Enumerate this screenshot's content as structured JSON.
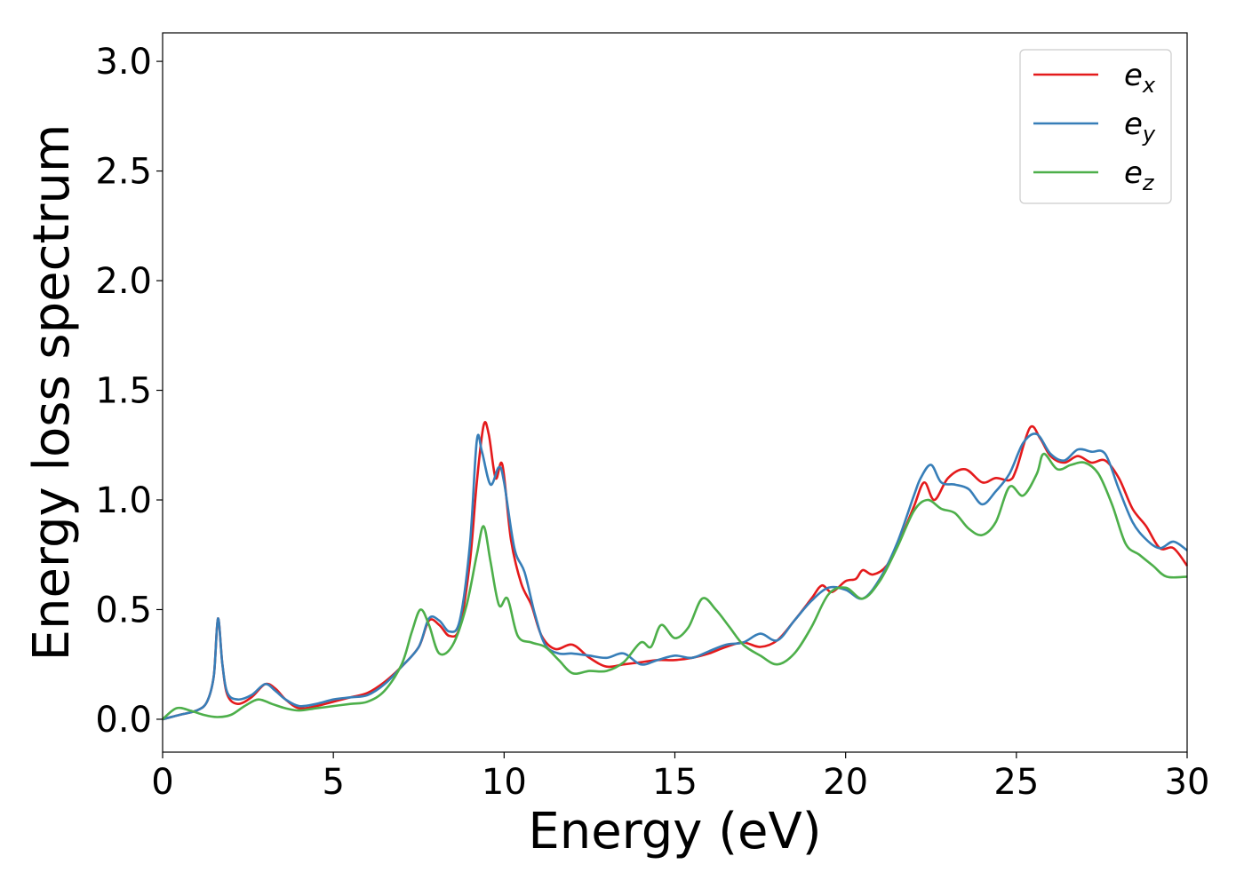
{
  "chart_data": {
    "type": "line",
    "title": "",
    "xlabel": "Energy (eV)",
    "ylabel": "Energy loss spectrum",
    "xlim": [
      0,
      30
    ],
    "ylim": [
      -0.15,
      3.13
    ],
    "xticks": [
      "0",
      "5",
      "10",
      "15",
      "20",
      "25",
      "30"
    ],
    "yticks": [
      "0.0",
      "0.5",
      "1.0",
      "1.5",
      "2.0",
      "2.5",
      "3.0"
    ],
    "grid": false,
    "legend_position": "top-right",
    "series": [
      {
        "name": "e_x",
        "color": "#e41a1c",
        "points": [
          [
            0,
            0.0
          ],
          [
            0.5,
            0.02
          ],
          [
            1.0,
            0.04
          ],
          [
            1.3,
            0.08
          ],
          [
            1.5,
            0.2
          ],
          [
            1.62,
            0.46
          ],
          [
            1.75,
            0.25
          ],
          [
            1.9,
            0.11
          ],
          [
            2.2,
            0.07
          ],
          [
            2.6,
            0.1
          ],
          [
            3.0,
            0.16
          ],
          [
            3.3,
            0.14
          ],
          [
            3.6,
            0.09
          ],
          [
            4.0,
            0.05
          ],
          [
            4.5,
            0.06
          ],
          [
            5.0,
            0.08
          ],
          [
            5.5,
            0.1
          ],
          [
            6.0,
            0.12
          ],
          [
            6.5,
            0.17
          ],
          [
            7.0,
            0.24
          ],
          [
            7.5,
            0.33
          ],
          [
            7.8,
            0.45
          ],
          [
            8.1,
            0.43
          ],
          [
            8.4,
            0.38
          ],
          [
            8.7,
            0.42
          ],
          [
            9.0,
            0.72
          ],
          [
            9.2,
            1.08
          ],
          [
            9.4,
            1.34
          ],
          [
            9.55,
            1.3
          ],
          [
            9.75,
            1.1
          ],
          [
            9.95,
            1.16
          ],
          [
            10.2,
            0.82
          ],
          [
            10.5,
            0.62
          ],
          [
            10.8,
            0.52
          ],
          [
            11.1,
            0.38
          ],
          [
            11.5,
            0.32
          ],
          [
            12.0,
            0.34
          ],
          [
            12.5,
            0.28
          ],
          [
            13.0,
            0.24
          ],
          [
            13.5,
            0.25
          ],
          [
            14.0,
            0.26
          ],
          [
            14.5,
            0.27
          ],
          [
            15.0,
            0.27
          ],
          [
            15.5,
            0.28
          ],
          [
            16.0,
            0.3
          ],
          [
            16.5,
            0.33
          ],
          [
            17.0,
            0.35
          ],
          [
            17.5,
            0.33
          ],
          [
            18.0,
            0.36
          ],
          [
            18.5,
            0.45
          ],
          [
            19.0,
            0.55
          ],
          [
            19.3,
            0.61
          ],
          [
            19.6,
            0.58
          ],
          [
            20.0,
            0.63
          ],
          [
            20.3,
            0.64
          ],
          [
            20.5,
            0.68
          ],
          [
            20.8,
            0.66
          ],
          [
            21.2,
            0.7
          ],
          [
            21.6,
            0.82
          ],
          [
            22.0,
            0.97
          ],
          [
            22.3,
            1.08
          ],
          [
            22.6,
            1.0
          ],
          [
            23.0,
            1.1
          ],
          [
            23.5,
            1.14
          ],
          [
            24.0,
            1.08
          ],
          [
            24.4,
            1.1
          ],
          [
            24.8,
            1.09
          ],
          [
            25.0,
            1.14
          ],
          [
            25.4,
            1.33
          ],
          [
            25.7,
            1.28
          ],
          [
            26.0,
            1.2
          ],
          [
            26.4,
            1.17
          ],
          [
            26.8,
            1.2
          ],
          [
            27.2,
            1.17
          ],
          [
            27.6,
            1.18
          ],
          [
            28.0,
            1.1
          ],
          [
            28.4,
            0.96
          ],
          [
            28.8,
            0.88
          ],
          [
            29.2,
            0.78
          ],
          [
            29.6,
            0.78
          ],
          [
            30.0,
            0.7
          ]
        ]
      },
      {
        "name": "e_y",
        "color": "#377eb8",
        "points": [
          [
            0,
            0.0
          ],
          [
            0.5,
            0.02
          ],
          [
            1.0,
            0.04
          ],
          [
            1.3,
            0.08
          ],
          [
            1.5,
            0.2
          ],
          [
            1.62,
            0.46
          ],
          [
            1.75,
            0.25
          ],
          [
            1.9,
            0.12
          ],
          [
            2.2,
            0.09
          ],
          [
            2.6,
            0.11
          ],
          [
            3.0,
            0.16
          ],
          [
            3.3,
            0.13
          ],
          [
            3.6,
            0.09
          ],
          [
            4.0,
            0.06
          ],
          [
            4.5,
            0.07
          ],
          [
            5.0,
            0.09
          ],
          [
            5.5,
            0.1
          ],
          [
            6.0,
            0.11
          ],
          [
            6.5,
            0.16
          ],
          [
            7.0,
            0.24
          ],
          [
            7.5,
            0.33
          ],
          [
            7.8,
            0.46
          ],
          [
            8.1,
            0.45
          ],
          [
            8.4,
            0.4
          ],
          [
            8.7,
            0.45
          ],
          [
            9.0,
            0.8
          ],
          [
            9.2,
            1.27
          ],
          [
            9.35,
            1.22
          ],
          [
            9.6,
            1.07
          ],
          [
            9.85,
            1.15
          ],
          [
            10.0,
            1.08
          ],
          [
            10.3,
            0.78
          ],
          [
            10.6,
            0.67
          ],
          [
            10.9,
            0.48
          ],
          [
            11.2,
            0.34
          ],
          [
            11.6,
            0.3
          ],
          [
            12.0,
            0.3
          ],
          [
            12.5,
            0.29
          ],
          [
            13.0,
            0.28
          ],
          [
            13.5,
            0.3
          ],
          [
            14.0,
            0.25
          ],
          [
            14.5,
            0.27
          ],
          [
            15.0,
            0.29
          ],
          [
            15.5,
            0.28
          ],
          [
            16.0,
            0.31
          ],
          [
            16.5,
            0.34
          ],
          [
            17.0,
            0.35
          ],
          [
            17.5,
            0.39
          ],
          [
            18.0,
            0.36
          ],
          [
            18.5,
            0.45
          ],
          [
            19.0,
            0.54
          ],
          [
            19.5,
            0.6
          ],
          [
            20.0,
            0.59
          ],
          [
            20.5,
            0.55
          ],
          [
            21.0,
            0.64
          ],
          [
            21.5,
            0.8
          ],
          [
            22.0,
            1.02
          ],
          [
            22.2,
            1.1
          ],
          [
            22.5,
            1.16
          ],
          [
            22.8,
            1.08
          ],
          [
            23.2,
            1.07
          ],
          [
            23.6,
            1.05
          ],
          [
            24.0,
            0.98
          ],
          [
            24.4,
            1.04
          ],
          [
            24.8,
            1.12
          ],
          [
            25.2,
            1.26
          ],
          [
            25.6,
            1.3
          ],
          [
            26.0,
            1.21
          ],
          [
            26.4,
            1.18
          ],
          [
            26.8,
            1.23
          ],
          [
            27.2,
            1.22
          ],
          [
            27.6,
            1.21
          ],
          [
            28.0,
            1.05
          ],
          [
            28.4,
            0.9
          ],
          [
            28.8,
            0.82
          ],
          [
            29.2,
            0.78
          ],
          [
            29.6,
            0.81
          ],
          [
            30.0,
            0.77
          ]
        ]
      },
      {
        "name": "e_z",
        "color": "#4daf4a",
        "points": [
          [
            0,
            0.0
          ],
          [
            0.4,
            0.05
          ],
          [
            0.8,
            0.04
          ],
          [
            1.2,
            0.02
          ],
          [
            1.6,
            0.01
          ],
          [
            2.0,
            0.02
          ],
          [
            2.4,
            0.06
          ],
          [
            2.8,
            0.09
          ],
          [
            3.2,
            0.07
          ],
          [
            3.6,
            0.05
          ],
          [
            4.0,
            0.04
          ],
          [
            4.5,
            0.05
          ],
          [
            5.0,
            0.06
          ],
          [
            5.5,
            0.07
          ],
          [
            6.0,
            0.08
          ],
          [
            6.5,
            0.13
          ],
          [
            7.0,
            0.25
          ],
          [
            7.3,
            0.4
          ],
          [
            7.55,
            0.5
          ],
          [
            7.8,
            0.43
          ],
          [
            8.1,
            0.3
          ],
          [
            8.5,
            0.34
          ],
          [
            8.9,
            0.52
          ],
          [
            9.2,
            0.75
          ],
          [
            9.4,
            0.88
          ],
          [
            9.6,
            0.72
          ],
          [
            9.85,
            0.52
          ],
          [
            10.1,
            0.55
          ],
          [
            10.4,
            0.38
          ],
          [
            10.8,
            0.35
          ],
          [
            11.2,
            0.33
          ],
          [
            11.6,
            0.27
          ],
          [
            12.0,
            0.21
          ],
          [
            12.5,
            0.22
          ],
          [
            13.0,
            0.22
          ],
          [
            13.5,
            0.26
          ],
          [
            14.0,
            0.35
          ],
          [
            14.3,
            0.33
          ],
          [
            14.6,
            0.43
          ],
          [
            15.0,
            0.37
          ],
          [
            15.4,
            0.42
          ],
          [
            15.8,
            0.55
          ],
          [
            16.2,
            0.5
          ],
          [
            16.6,
            0.42
          ],
          [
            17.0,
            0.34
          ],
          [
            17.5,
            0.29
          ],
          [
            18.0,
            0.25
          ],
          [
            18.5,
            0.3
          ],
          [
            19.0,
            0.42
          ],
          [
            19.5,
            0.57
          ],
          [
            20.0,
            0.6
          ],
          [
            20.5,
            0.55
          ],
          [
            21.0,
            0.63
          ],
          [
            21.5,
            0.78
          ],
          [
            22.0,
            0.95
          ],
          [
            22.4,
            1.0
          ],
          [
            22.8,
            0.96
          ],
          [
            23.2,
            0.94
          ],
          [
            23.6,
            0.87
          ],
          [
            24.0,
            0.84
          ],
          [
            24.4,
            0.9
          ],
          [
            24.8,
            1.06
          ],
          [
            25.2,
            1.02
          ],
          [
            25.6,
            1.12
          ],
          [
            25.8,
            1.21
          ],
          [
            26.2,
            1.14
          ],
          [
            26.6,
            1.16
          ],
          [
            27.0,
            1.17
          ],
          [
            27.4,
            1.12
          ],
          [
            27.8,
            0.98
          ],
          [
            28.2,
            0.8
          ],
          [
            28.6,
            0.75
          ],
          [
            29.0,
            0.7
          ],
          [
            29.4,
            0.65
          ],
          [
            30.0,
            0.65
          ]
        ]
      }
    ]
  }
}
